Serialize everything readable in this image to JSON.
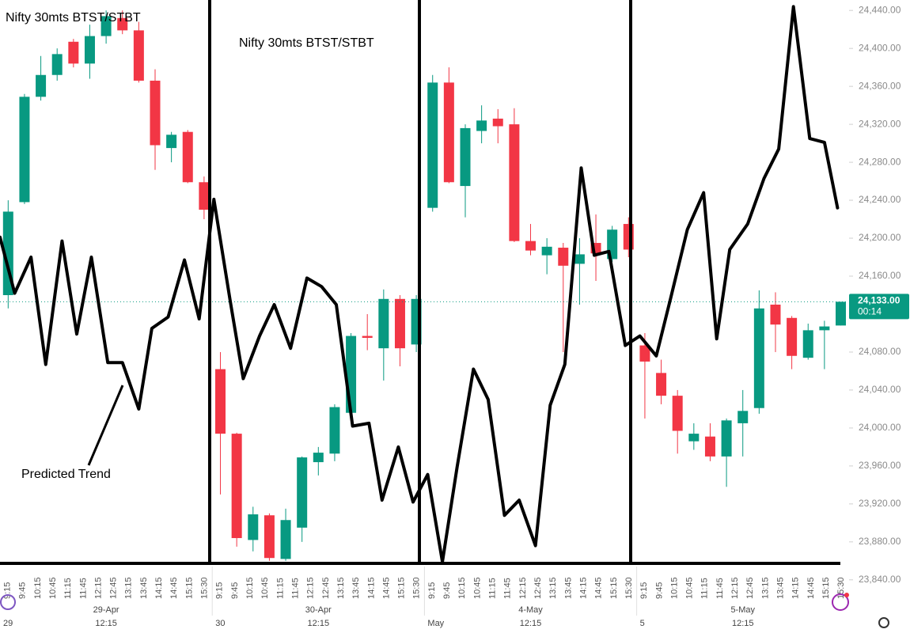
{
  "chart_data": {
    "type": "candlestick",
    "title": "Nifty 30mts BTST/STBT",
    "annotations": [
      "Nifty 30mts BTST/STBT",
      "Predicted Trend"
    ],
    "up_color": "#089981",
    "down_color": "#f23645",
    "open": [
      24140,
      24238,
      24349,
      24372,
      24407,
      24384,
      24413,
      24432,
      24419,
      24366,
      24295,
      24312,
      24259,
      24062,
      23994,
      23882,
      23908,
      23862,
      23895,
      23964,
      23973,
      24016,
      24097,
      24084,
      24136,
      24088,
      24232,
      24364,
      24255,
      24313,
      24326,
      24320,
      24197,
      24182,
      24190,
      24173,
      24195,
      24178,
      24215,
      24087,
      24058,
      24034,
      23986,
      23991,
      23970,
      24005,
      24021,
      24130,
      24116,
      24074,
      24103,
      24108
    ],
    "high": [
      24240,
      24352,
      24392,
      24400,
      24410,
      24425,
      24440,
      24440,
      24428,
      24378,
      24312,
      24314,
      24265,
      24080,
      23995,
      23917,
      23910,
      23915,
      23970,
      23980,
      24025,
      24100,
      24120,
      24146,
      24140,
      24140,
      24372,
      24380,
      24320,
      24340,
      24336,
      24337,
      24215,
      24200,
      24195,
      24200,
      24225,
      24213,
      24222,
      24100,
      24072,
      24040,
      24005,
      24005,
      24010,
      24040,
      24145,
      24143,
      24118,
      24110,
      24113,
      24133
    ],
    "low": [
      24126,
      24236,
      24345,
      24366,
      24380,
      24368,
      24405,
      24415,
      24364,
      24272,
      24280,
      24258,
      24220,
      23930,
      23875,
      23870,
      23860,
      23860,
      23880,
      23950,
      23965,
      24010,
      24082,
      24050,
      24065,
      24080,
      24228,
      24258,
      24222,
      24300,
      24300,
      24196,
      24182,
      24162,
      24080,
      24130,
      24155,
      24175,
      24180,
      24010,
      24025,
      23973,
      23977,
      23965,
      23938,
      23970,
      24015,
      24080,
      24062,
      24072,
      24062,
      24108
    ],
    "close": [
      24228,
      24349,
      24372,
      24394,
      24384,
      24413,
      24434,
      24419,
      24366,
      24298,
      24309,
      24259,
      24230,
      23994,
      23884,
      23909,
      23863,
      23903,
      23969,
      23974,
      24022,
      24097,
      24095,
      24136,
      24084,
      24136,
      24364,
      24259,
      24316,
      24324,
      24318,
      24197,
      24187,
      24191,
      24171,
      24183,
      24184,
      24209,
      24188,
      24070,
      24034,
      23997,
      23994,
      23970,
      24008,
      24018,
      24126,
      24109,
      24076,
      24103,
      24107,
      24133
    ],
    "xlim": [
      -0.5,
      51.46
    ],
    "ylim": [
      23829,
      24451
    ],
    "yticks": [
      {
        "value": 23840,
        "label": "23,840.00"
      },
      {
        "value": 23880,
        "label": "23,880.00"
      },
      {
        "value": 23920,
        "label": "23,920.00"
      },
      {
        "value": 23960,
        "label": "23,960.00"
      },
      {
        "value": 24000,
        "label": "24,000.00"
      },
      {
        "value": 24040,
        "label": "24,040.00"
      },
      {
        "value": 24080,
        "label": "24,080.00"
      },
      {
        "value": 24120,
        "label": "24,120.00"
      },
      {
        "value": 24160,
        "label": "24,160.00"
      },
      {
        "value": 24200,
        "label": "24,200.00"
      },
      {
        "value": 24240,
        "label": "24,240.00"
      },
      {
        "value": 24280,
        "label": "24,280.00"
      },
      {
        "value": 24320,
        "label": "24,320.00"
      },
      {
        "value": 24360,
        "label": "24,360.00"
      },
      {
        "value": 24400,
        "label": "24,400.00"
      },
      {
        "value": 24440,
        "label": "24,440.00"
      }
    ],
    "last_price": {
      "value": 24133,
      "label": "24,133.00",
      "countdown": "00:14",
      "color": "#089981"
    },
    "trend": {
      "name": "Predicted Trend",
      "color": "#000000",
      "x": [
        -0.5,
        0.4,
        1.4,
        2.3,
        3.3,
        4.2,
        5.1,
        6.1,
        7.0,
        8.0,
        8.8,
        9.8,
        10.8,
        11.7,
        12.6,
        13.6,
        14.4,
        15.4,
        16.3,
        17.3,
        18.3,
        19.2,
        20.1,
        21.1,
        22.1,
        22.9,
        23.9,
        24.8,
        25.7,
        26.6,
        27.5,
        28.5,
        29.4,
        30.4,
        31.3,
        32.3,
        33.2,
        34.1,
        35.1,
        35.9,
        36.8,
        37.8,
        38.7,
        39.7,
        40.6,
        41.6,
        42.6,
        43.4,
        44.2,
        45.3,
        46.3,
        47.2,
        48.1,
        49.1,
        50.0,
        50.8
      ],
      "values": [
        24201,
        24142,
        24180,
        24067,
        24197,
        24099,
        24180,
        24069,
        24069,
        24020,
        24105,
        24117,
        24177,
        24115,
        24241,
        24134,
        24052,
        24097,
        24130,
        24084,
        24158,
        24149,
        24130,
        24002,
        24005,
        23924,
        23980,
        23922,
        23951,
        23859,
        23959,
        24062,
        24030,
        23908,
        23924,
        23876,
        24024,
        24067,
        24274,
        24182,
        24186,
        24087,
        24097,
        24076,
        24138,
        24209,
        24248,
        24094,
        24188,
        24215,
        24263,
        24294,
        24444,
        24305,
        24301,
        24232
      ]
    },
    "time_axis": {
      "candles_per_day": 13,
      "days": [
        {
          "label": "29-Apr",
          "times": [
            "9:15",
            "9:45",
            "10:15",
            "10:45",
            "11:15",
            "11:45",
            "12:15",
            "12:45",
            "13:15",
            "13:45",
            "14:15",
            "14:45",
            "15:15",
            "15:30"
          ]
        },
        {
          "label": "30-Apr",
          "times": [
            "9:15",
            "9:45",
            "10:15",
            "10:45",
            "11:15",
            "11:45",
            "12:15",
            "12:45",
            "13:15",
            "13:45",
            "14:15",
            "14:45",
            "15:15",
            "15:30"
          ]
        },
        {
          "label": "4-May",
          "times": [
            "9:15",
            "9:45",
            "10:15",
            "10:45",
            "11:15",
            "11:45",
            "12:15",
            "12:45",
            "13:15",
            "13:45",
            "14:15",
            "14:45",
            "15:15",
            "15:30"
          ]
        },
        {
          "label": "5-May",
          "times": [
            "9:15",
            "9:45",
            "10:15",
            "10:45",
            "11:15",
            "11:45",
            "12:15",
            "12:45",
            "13:15",
            "13:45",
            "14:15",
            "14:45",
            "15:15",
            "15:30"
          ]
        }
      ],
      "bottom_labels": [
        "29",
        "12:15",
        "30",
        "12:15",
        "May",
        "12:15",
        "5",
        "12:15"
      ]
    }
  }
}
